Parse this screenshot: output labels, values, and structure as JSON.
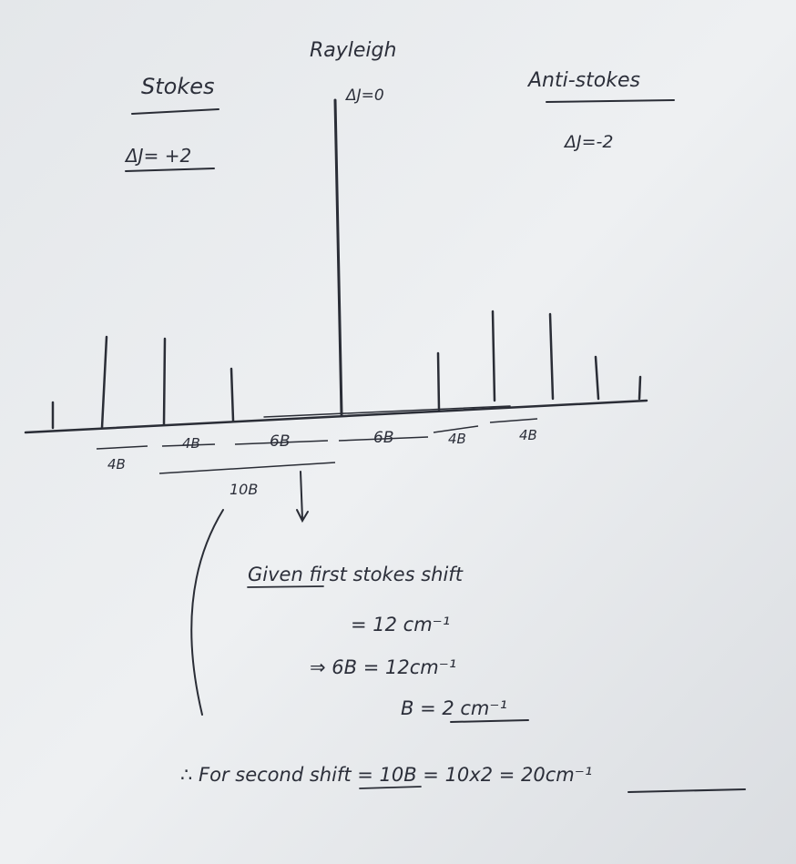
{
  "header": {
    "rayleigh": "Rayleigh",
    "rayleigh_dj": "ΔJ=0",
    "stokes": "Stokes",
    "stokes_dj": "ΔJ= +2",
    "anti_stokes": "Anti-stokes",
    "anti_stokes_dj": "ΔJ=-2"
  },
  "spacings": [
    "4B",
    "4B",
    "6B",
    "6B",
    "4B",
    "4B"
  ],
  "span_label": "10B",
  "working": {
    "line1": "Given first stokes shift",
    "line2": "= 12 cm⁻¹",
    "line3": "⇒ 6B = 12cm⁻¹",
    "line4": "B = 2 cm⁻¹",
    "line5": "∴ For second shift = 10B = 10x2 = 20cm⁻¹"
  },
  "colors": {
    "paper": "#e9ecef",
    "ink": "#2c2f3a"
  }
}
